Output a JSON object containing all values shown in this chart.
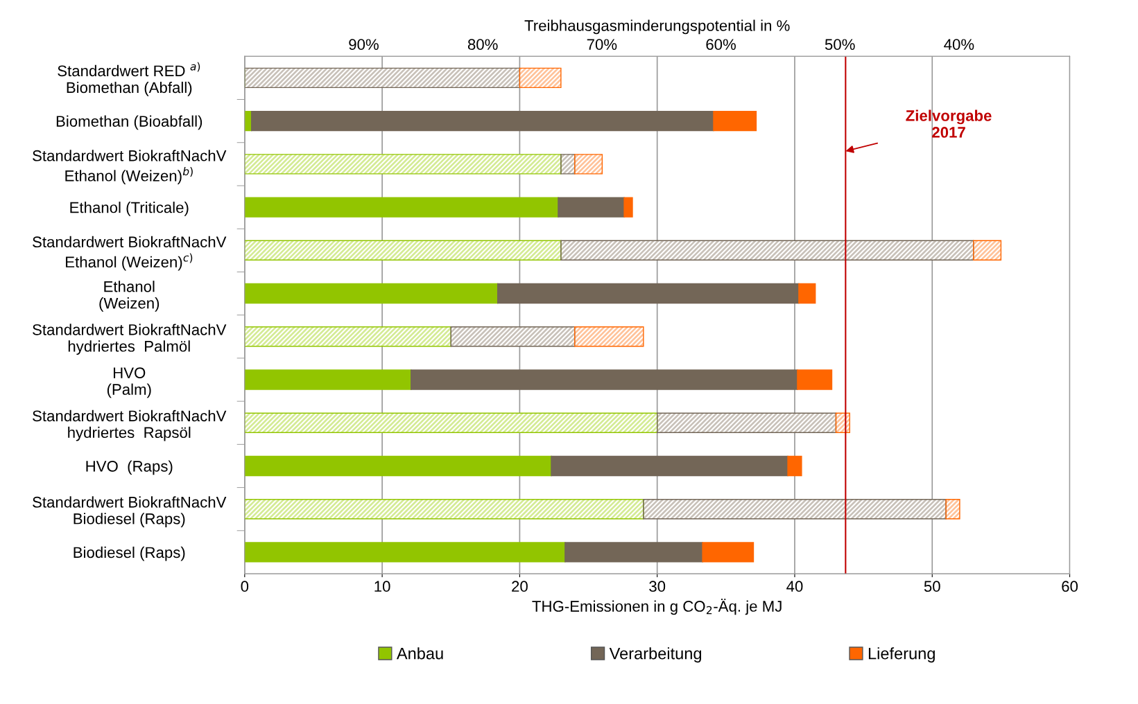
{
  "chart_data": {
    "type": "bar",
    "orientation": "horizontal",
    "stacked": true,
    "categories": [
      "Standardwert RED $^{a)}$\nBiomethan (Abfall)",
      "Biomethan (Bioabfall)",
      "Standardwert BiokraftNachV\nEthanol (Weizen)$^{b)}$",
      "Ethanol (Triticale)",
      "Standardwert BiokraftNachV\nEthanol (Weizen)$^{c)}$",
      "Ethanol\n(Weizen)",
      "Standardwert BiokraftNachV\nhydriertes  Palmöl",
      "HVO\n(Palm)",
      "Standardwert BiokraftNachV\nhydriertes  Rapsöl",
      "HVO  (Raps)",
      "Standardwert BiokraftNachV\nBiodiesel (Raps)",
      "Biodiesel (Raps)"
    ],
    "series": [
      {
        "name": "Anbau",
        "color": "#92c500",
        "values": [
          0,
          0.5,
          23,
          22.8,
          23,
          18.4,
          15,
          12.1,
          30,
          22.3,
          29,
          23.3
        ],
        "colors": [
          "#d4eb94",
          "#92c500",
          "#d4eb94",
          "#92c500",
          "#d4eb94",
          "#92c500",
          "#d4eb94",
          "#92c500",
          "#d4eb94",
          "#92c500",
          "#d4eb94",
          "#92c500"
        ]
      },
      {
        "name": "Verarbeitung",
        "color": "#736657",
        "values": [
          20,
          33.6,
          1,
          4.8,
          30,
          21.9,
          9,
          28.1,
          13,
          17.2,
          22,
          10.0
        ],
        "colors": [
          "#c8c1b9",
          "#736657",
          "#c8c1b9",
          "#736657",
          "#c8c1b9",
          "#736657",
          "#c8c1b9",
          "#736657",
          "#c8c1b9",
          "#736657",
          "#c8c1b9",
          "#736657"
        ]
      },
      {
        "name": "Lieferung",
        "color": "#ff6600",
        "values": [
          3,
          3.1,
          2,
          0.6,
          2,
          1.2,
          5,
          2.5,
          1,
          1.0,
          1,
          3.7
        ],
        "colors": [
          "#ffc299",
          "#ff6600",
          "#ffc299",
          "#ff6600",
          "#ffc299",
          "#ff6600",
          "#ffc299",
          "#ff6600",
          "#ffc299",
          "#ff6600",
          "#ffc299",
          "#ff6600"
        ]
      }
    ],
    "xlabel": "THG-Emissionen in g CO$_{2}$-Äq. je MJ",
    "x2label": "Treibhausgasminderungspotential in %",
    "xlim": [
      0,
      60
    ],
    "xticks": [
      0,
      10,
      20,
      30,
      40,
      50,
      60
    ],
    "x2lim": [
      100,
      30.7
    ],
    "x2ticks": [
      {
        "value": 90,
        "label": "90%"
      },
      {
        "value": 80,
        "label": "80%"
      },
      {
        "value": 70,
        "label": "70%"
      },
      {
        "value": 60,
        "label": "60%"
      },
      {
        "value": 50,
        "label": "50%"
      },
      {
        "value": 40,
        "label": "40%"
      }
    ],
    "ref_lines": [
      {
        "axis": "x",
        "value": 43.7,
        "label": "Zielvorgabe\n2017",
        "color": "#c00000"
      }
    ],
    "grid": "x",
    "legend": "bottom"
  }
}
